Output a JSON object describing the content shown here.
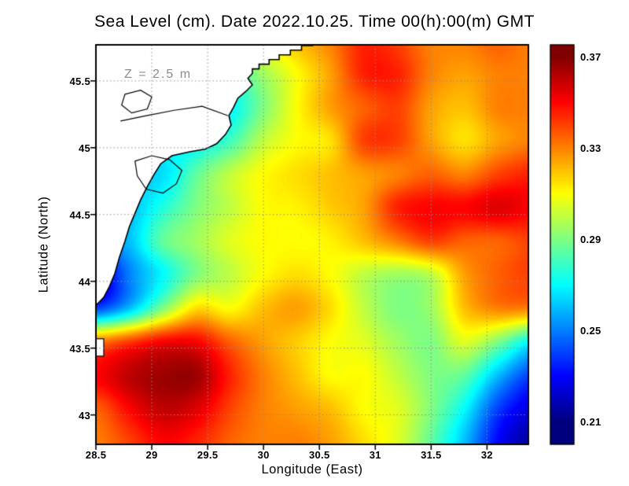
{
  "chart_data": {
    "type": "heatmap",
    "title": "Sea Level (cm). Date 2022.10.25. Time 00(h):00(m) GMT",
    "annotation": "Z = 2.5 m",
    "xlabel": "Longitude (East)",
    "ylabel": "Latitude (North)",
    "x_range": [
      28.5,
      32.37
    ],
    "y_range": [
      42.78,
      45.77
    ],
    "grid": {
      "lon_start": 28.5,
      "lon_step": 0.3,
      "lat_start": 45.8,
      "lat_step": 0.25
    },
    "grid_lons": [
      28.5,
      28.8,
      29.1,
      29.4,
      29.7,
      30.0,
      30.3,
      30.6,
      30.9,
      31.2,
      31.5,
      31.8,
      32.1,
      32.4
    ],
    "grid_lats": [
      45.8,
      45.55,
      45.3,
      45.05,
      44.8,
      44.55,
      44.3,
      44.05,
      43.8,
      43.55,
      43.3,
      43.05,
      42.8
    ],
    "values": [
      [
        0.3,
        0.3,
        0.3,
        0.3,
        0.3,
        0.31,
        0.32,
        0.33,
        0.345,
        0.34,
        0.33,
        0.33,
        0.335,
        0.33
      ],
      [
        0.29,
        0.29,
        0.29,
        0.285,
        0.28,
        0.295,
        0.31,
        0.325,
        0.345,
        0.345,
        0.33,
        0.325,
        0.33,
        0.33
      ],
      [
        0.28,
        0.28,
        0.275,
        0.27,
        0.27,
        0.29,
        0.31,
        0.325,
        0.335,
        0.34,
        0.325,
        0.32,
        0.33,
        0.33
      ],
      [
        0.275,
        0.27,
        0.27,
        0.27,
        0.28,
        0.3,
        0.31,
        0.315,
        0.34,
        0.34,
        0.325,
        0.315,
        0.325,
        0.33
      ],
      [
        0.27,
        0.265,
        0.265,
        0.285,
        0.3,
        0.31,
        0.315,
        0.32,
        0.325,
        0.33,
        0.335,
        0.33,
        0.34,
        0.345
      ],
      [
        0.26,
        0.26,
        0.275,
        0.29,
        0.3,
        0.31,
        0.312,
        0.318,
        0.325,
        0.345,
        0.35,
        0.35,
        0.355,
        0.35
      ],
      [
        0.25,
        0.26,
        0.285,
        0.295,
        0.305,
        0.31,
        0.31,
        0.312,
        0.32,
        0.33,
        0.34,
        0.335,
        0.335,
        0.34
      ],
      [
        0.22,
        0.25,
        0.27,
        0.29,
        0.3,
        0.31,
        0.315,
        0.31,
        0.3,
        0.295,
        0.3,
        0.325,
        0.335,
        0.34
      ],
      [
        0.24,
        0.26,
        0.29,
        0.315,
        0.31,
        0.32,
        0.325,
        0.315,
        0.3,
        0.29,
        0.295,
        0.32,
        0.33,
        0.33
      ],
      [
        0.33,
        0.34,
        0.35,
        0.35,
        0.335,
        0.325,
        0.318,
        0.31,
        0.305,
        0.295,
        0.29,
        0.305,
        0.29,
        0.27
      ],
      [
        0.35,
        0.36,
        0.365,
        0.365,
        0.345,
        0.33,
        0.32,
        0.31,
        0.31,
        0.3,
        0.29,
        0.285,
        0.26,
        0.24
      ],
      [
        0.335,
        0.35,
        0.36,
        0.355,
        0.34,
        0.33,
        0.325,
        0.32,
        0.31,
        0.305,
        0.29,
        0.27,
        0.24,
        0.225
      ],
      [
        0.33,
        0.34,
        0.35,
        0.345,
        0.335,
        0.33,
        0.33,
        0.325,
        0.315,
        0.305,
        0.285,
        0.26,
        0.23,
        0.215
      ]
    ],
    "value_range": [
      0.21,
      0.37
    ],
    "x_ticks": [
      {
        "v": 28.5,
        "label": "28.5"
      },
      {
        "v": 29,
        "label": "29"
      },
      {
        "v": 29.5,
        "label": "29.5"
      },
      {
        "v": 30,
        "label": "30"
      },
      {
        "v": 30.5,
        "label": "30.5"
      },
      {
        "v": 31,
        "label": "31"
      },
      {
        "v": 31.5,
        "label": "31.5"
      },
      {
        "v": 32,
        "label": "32"
      }
    ],
    "y_ticks": [
      {
        "v": 43,
        "label": "43"
      },
      {
        "v": 43.5,
        "label": "43.5"
      },
      {
        "v": 44,
        "label": "44"
      },
      {
        "v": 44.5,
        "label": "44.5"
      },
      {
        "v": 45,
        "label": "45"
      },
      {
        "v": 45.5,
        "label": "45.5"
      }
    ],
    "gridlines": "dotted",
    "colorbar": {
      "top_value": 0.375,
      "bottom_value": 0.2,
      "ticks": [
        {
          "v": 0.37,
          "label": "0.37"
        },
        {
          "v": 0.33,
          "label": "0.33"
        },
        {
          "v": 0.29,
          "label": "0.29"
        },
        {
          "v": 0.25,
          "label": "0.25"
        },
        {
          "v": 0.21,
          "label": "0.21"
        }
      ],
      "colormap": [
        {
          "t": 0,
          "c": "#00007f"
        },
        {
          "t": 0.125,
          "c": "#0000ff"
        },
        {
          "t": 0.375,
          "c": "#00ffff"
        },
        {
          "t": 0.625,
          "c": "#ffff00"
        },
        {
          "t": 0.875,
          "c": "#ff0000"
        },
        {
          "t": 1,
          "c": "#7f0000"
        }
      ]
    },
    "map": {
      "land_color": "#ffffff",
      "coast_color": "#000000",
      "gridline_color": "#8f8f8f",
      "coast_path": [
        [
          30.52,
          45.8
        ],
        [
          30.44,
          45.8
        ],
        [
          30.44,
          45.765
        ],
        [
          30.34,
          45.765
        ],
        [
          30.34,
          45.73
        ],
        [
          30.24,
          45.73
        ],
        [
          30.24,
          45.695
        ],
        [
          30.14,
          45.695
        ],
        [
          30.14,
          45.66
        ],
        [
          30.05,
          45.66
        ],
        [
          30.05,
          45.625
        ],
        [
          29.96,
          45.625
        ],
        [
          29.96,
          45.59
        ],
        [
          29.9,
          45.59
        ],
        [
          29.9,
          45.555
        ],
        [
          29.86,
          45.52
        ],
        [
          29.9,
          45.47
        ],
        [
          29.84,
          45.42
        ],
        [
          29.77,
          45.37
        ],
        [
          29.73,
          45.3
        ],
        [
          29.69,
          45.24
        ],
        [
          29.71,
          45.17
        ],
        [
          29.66,
          45.1
        ],
        [
          29.58,
          45.03
        ],
        [
          29.48,
          44.99
        ],
        [
          29.34,
          44.97
        ],
        [
          29.18,
          44.94
        ],
        [
          29.08,
          44.88
        ],
        [
          29.02,
          44.8
        ],
        [
          28.96,
          44.71
        ],
        [
          28.9,
          44.61
        ],
        [
          28.85,
          44.51
        ],
        [
          28.8,
          44.41
        ],
        [
          28.76,
          44.3
        ],
        [
          28.71,
          44.18
        ],
        [
          28.67,
          44.06
        ],
        [
          28.62,
          43.96
        ],
        [
          28.57,
          43.88
        ],
        [
          28.5,
          43.82
        ]
      ],
      "lakes": [
        [
          [
            28.85,
            44.9
          ],
          [
            29.0,
            44.94
          ],
          [
            29.16,
            44.91
          ],
          [
            29.27,
            44.83
          ],
          [
            29.22,
            44.73
          ],
          [
            29.1,
            44.66
          ],
          [
            28.95,
            44.69
          ],
          [
            28.87,
            44.79
          ]
        ],
        [
          [
            28.76,
            45.4
          ],
          [
            28.9,
            45.43
          ],
          [
            29.0,
            45.38
          ],
          [
            28.96,
            45.29
          ],
          [
            28.82,
            45.26
          ],
          [
            28.73,
            45.32
          ]
        ]
      ],
      "rivers": [
        [
          [
            28.72,
            45.2
          ],
          [
            28.95,
            45.24
          ],
          [
            29.2,
            45.28
          ],
          [
            29.45,
            45.31
          ],
          [
            29.68,
            45.24
          ]
        ]
      ],
      "islet": [
        28.5,
        43.44,
        28.57,
        43.57
      ]
    }
  }
}
